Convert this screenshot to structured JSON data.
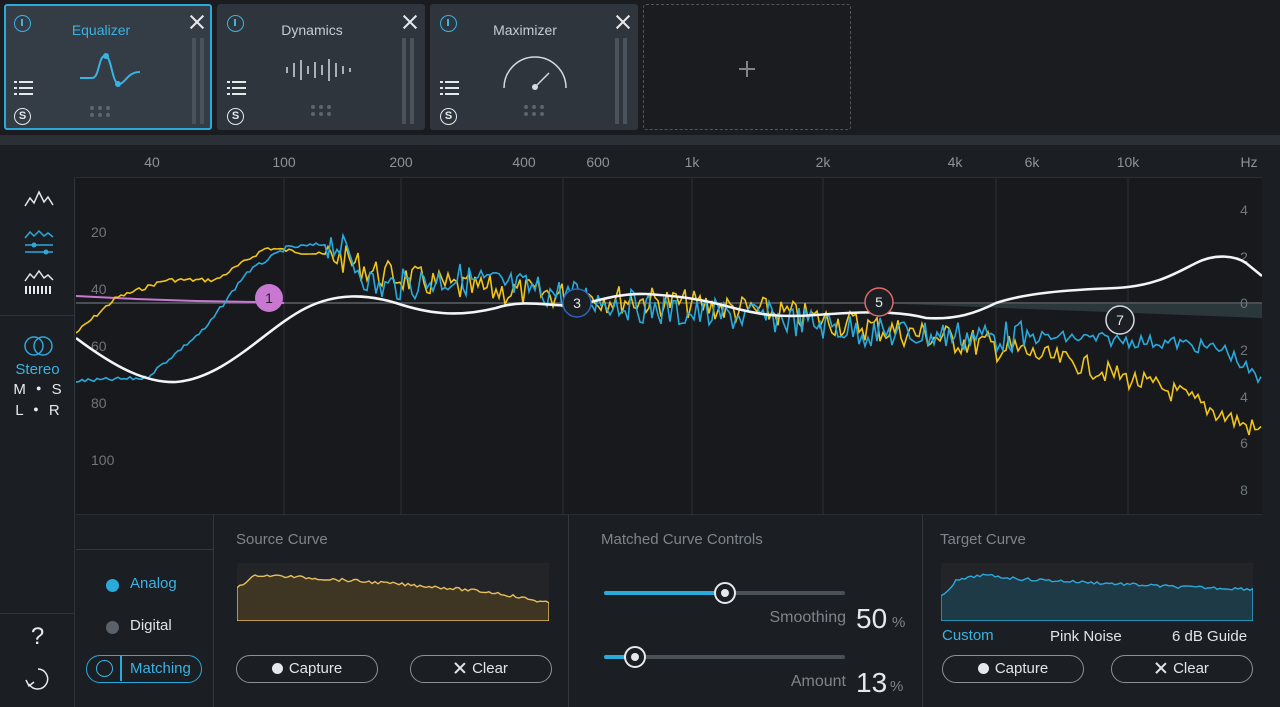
{
  "modules": [
    {
      "title": "Equalizer",
      "active": true,
      "icon": "eq-curve-icon"
    },
    {
      "title": "Dynamics",
      "active": false,
      "icon": "dynamics-waveform-icon"
    },
    {
      "title": "Maximizer",
      "active": false,
      "icon": "maximizer-gauge-icon"
    }
  ],
  "add_slot_icon": "plus-icon",
  "freq_labels": [
    "40",
    "100",
    "200",
    "400",
    "600",
    "1k",
    "2k",
    "4k",
    "6k",
    "10k",
    "Hz"
  ],
  "db_left": [
    "20",
    "40",
    "60",
    "80",
    "100"
  ],
  "db_right": [
    "4",
    "2",
    "0",
    "2",
    "4",
    "6",
    "8"
  ],
  "nodes": [
    {
      "label": "1",
      "color": "#c878d0"
    },
    {
      "label": "3",
      "color": "#2d66b8"
    },
    {
      "label": "5",
      "color": "#e06a6a"
    },
    {
      "label": "7",
      "color": "#d6dade"
    }
  ],
  "colors": {
    "accent": "#2aa9db",
    "source": "#f0c419",
    "target": "#2aa9db",
    "match": "#ffffff",
    "band1": "#c878d0"
  },
  "sidebar": {
    "stereo_label": "Stereo",
    "ms_m": "M",
    "ms_s": "S",
    "lr_l": "L",
    "lr_r": "R",
    "help": "?"
  },
  "mode": {
    "analog": "Analog",
    "digital": "Digital",
    "matching": "Matching",
    "selected": "Analog"
  },
  "source_curve": {
    "title": "Source Curve",
    "capture": "Capture",
    "clear": "Clear"
  },
  "matched_controls": {
    "title": "Matched Curve Controls",
    "smoothing_label": "Smoothing",
    "smoothing_value": "50",
    "smoothing_unit": "%",
    "smoothing": 50,
    "amount_label": "Amount",
    "amount_value": "13",
    "amount_unit": "%",
    "amount": 13
  },
  "target_curve": {
    "title": "Target Curve",
    "options": [
      "Custom",
      "Pink Noise",
      "6 dB Guide"
    ],
    "selected": "Custom",
    "capture": "Capture",
    "clear": "Clear"
  }
}
